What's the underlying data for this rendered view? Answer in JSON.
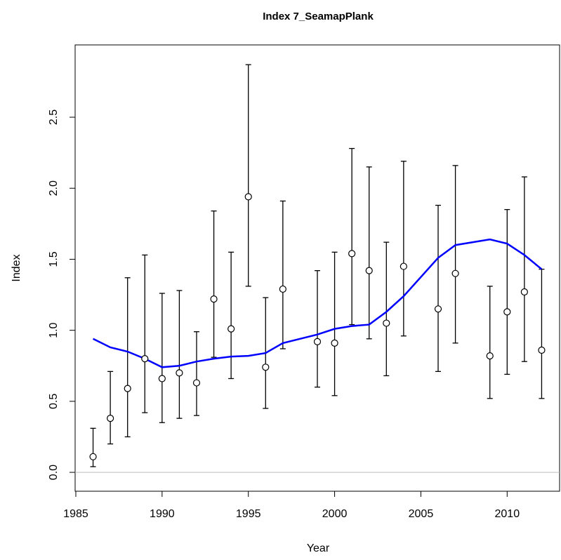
{
  "chart_data": {
    "type": "errorbar",
    "title": "Index 7_SeamapPlank",
    "x_label": "Year",
    "y_label": "Index",
    "x": [
      1986,
      1987,
      1988,
      1989,
      1990,
      1991,
      1992,
      1993,
      1994,
      1995,
      1996,
      1997,
      1999,
      2000,
      2001,
      2002,
      2003,
      2004,
      2006,
      2007,
      2009,
      2010,
      2011,
      2012
    ],
    "values": [
      0.11,
      0.38,
      0.59,
      0.8,
      0.66,
      0.7,
      0.63,
      1.22,
      1.01,
      1.94,
      0.74,
      1.29,
      0.92,
      0.91,
      1.54,
      1.42,
      1.05,
      1.45,
      1.15,
      1.4,
      0.82,
      1.13,
      1.27,
      0.86
    ],
    "lower": [
      0.04,
      0.2,
      0.25,
      0.42,
      0.35,
      0.38,
      0.4,
      0.81,
      0.66,
      1.31,
      0.45,
      0.87,
      0.6,
      0.54,
      1.04,
      0.94,
      0.68,
      0.96,
      0.71,
      0.91,
      0.52,
      0.69,
      0.78,
      0.52
    ],
    "upper": [
      0.31,
      0.71,
      1.37,
      1.53,
      1.26,
      1.28,
      0.99,
      1.84,
      1.55,
      2.87,
      1.23,
      1.91,
      1.42,
      1.55,
      2.28,
      2.15,
      1.62,
      2.19,
      1.88,
      2.16,
      1.31,
      1.85,
      2.08,
      1.43
    ],
    "line": {
      "color": "#0000ff",
      "values": [
        0.94,
        0.88,
        0.85,
        0.8,
        0.74,
        0.75,
        0.78,
        0.8,
        0.815,
        0.82,
        0.84,
        0.91,
        0.97,
        1.01,
        1.03,
        1.04,
        1.13,
        1.24,
        1.51,
        1.6,
        1.64,
        1.61,
        1.53,
        1.43
      ]
    },
    "reference_line": 0,
    "xlim": [
      1984.96,
      2013.04
    ],
    "ylim": [
      -0.133,
      3.009
    ],
    "xticks": [
      1985,
      1990,
      1995,
      2000,
      2005,
      2010
    ],
    "yticks": [
      {
        "value": 0,
        "label": "0.0"
      },
      0.5,
      {
        "value": 1,
        "label": "1.0"
      },
      1.5,
      {
        "value": 2,
        "label": "2.0"
      },
      2.5
    ]
  }
}
